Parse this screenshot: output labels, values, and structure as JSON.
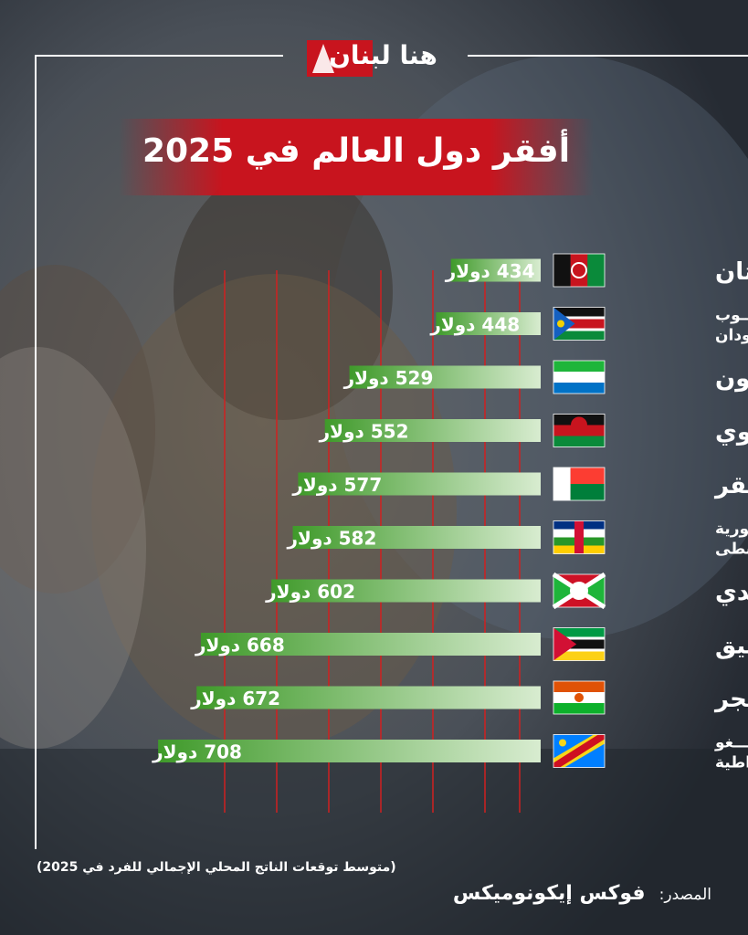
{
  "brand": {
    "logo_text": "هنا لبنان"
  },
  "header": {
    "title": "أفقر دول العالم في 2025"
  },
  "colors": {
    "accent_red": "#c8141e",
    "bar_light": "#c8e3bb",
    "bar_dark": "#3f9a2a",
    "gridline": "#d02020"
  },
  "chart_data": {
    "type": "bar",
    "orientation": "horizontal",
    "title": "أفقر دول العالم في 2025",
    "unit": "دولار",
    "categories": [
      "أفغانستان",
      "جنوب السودان",
      "سيراليون",
      "مالاوي",
      "مدغشقر",
      "جمهورية أفريقيا الوسطى",
      "بوروندي",
      "موزمبيق",
      "النيجر",
      "الكونغو الديمقراطية"
    ],
    "category_lines": [
      [
        "أفغانستان"
      ],
      [
        "جنــــوب",
        "الســـودان"
      ],
      [
        "سيراليون"
      ],
      [
        "مالاوي"
      ],
      [
        "مدغشقر"
      ],
      [
        "جمهـــورية",
        "أفريقيا الوسطى"
      ],
      [
        "بوروندي"
      ],
      [
        "موزمبيق"
      ],
      [
        "النيجر"
      ],
      [
        "الكونــــغو",
        "الديمقراطية"
      ]
    ],
    "value_labels": [
      "434 دولار",
      "448 دولار",
      "529  دولار",
      "552 دولار",
      "577 دولار",
      "582 دولار",
      "602 دولار",
      "668 دولار",
      "672 دولار",
      "708 دولار"
    ],
    "values": [
      434,
      448,
      529,
      552,
      577,
      582,
      602,
      668,
      672,
      708
    ],
    "flags": [
      "afghanistan-flag-icon",
      "south-sudan-flag-icon",
      "sierra-leone-flag-icon",
      "malawi-flag-icon",
      "madagascar-flag-icon",
      "central-african-republic-flag-icon",
      "burundi-flag-icon",
      "mozambique-flag-icon",
      "niger-flag-icon",
      "dr-congo-flag-icon"
    ],
    "xlim": [
      350,
      710
    ],
    "grid": true
  },
  "footer": {
    "note": "(متوسط توقعات الناتج المحلي الإجمالي للفرد في 2025)",
    "source_label": "المصدر:",
    "source_value": "فوكس إيكونوميكس"
  }
}
